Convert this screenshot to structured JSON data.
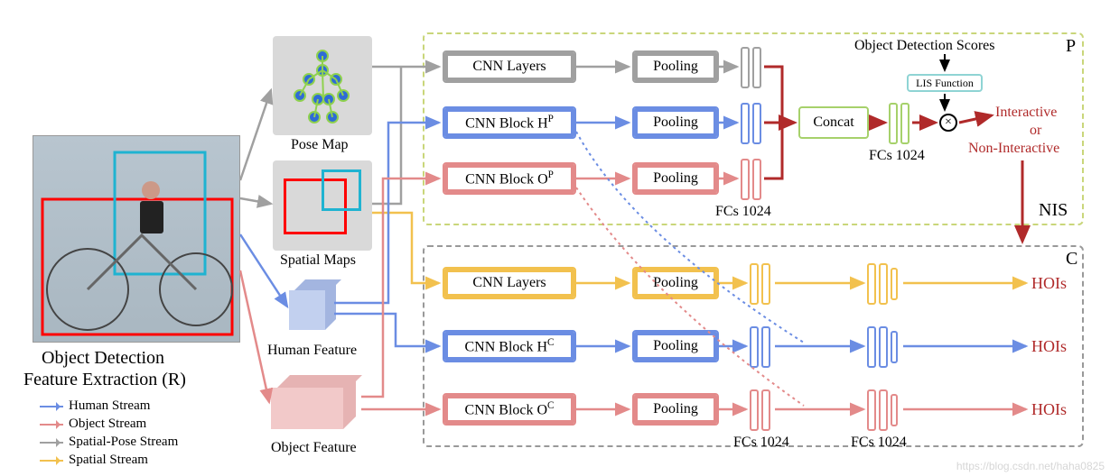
{
  "colors": {
    "blue": "#6b8de3",
    "red": "#e38a8a",
    "pink": "#f2a5a5",
    "grey": "#a0a0a0",
    "yellow": "#f2c14e",
    "green": "#a6d16b",
    "darkred": "#b02a2a",
    "darkgreen": "#8aab75",
    "teal": "#8fd4d4",
    "dashborder_p": "#c9d67a",
    "dashborder_c": "#999999",
    "greybg": "#d9d9d9",
    "lightblue_cube": "#c2d0ef",
    "lightpink_cube": "#f2c9c9",
    "darkblue_cube": "#a3b5e0",
    "darkpink_cube": "#e6b3b3"
  },
  "left": {
    "title1": "Object Detection",
    "title2": "Feature Extraction (R)",
    "legend": [
      {
        "label": "Human Stream",
        "color": "#6b8de3"
      },
      {
        "label": "Object   Stream",
        "color": "#e38a8a"
      },
      {
        "label": "Spatial-Pose Stream",
        "color": "#a0a0a0"
      },
      {
        "label": "Spatial Stream",
        "color": "#f2c14e"
      }
    ]
  },
  "mid": {
    "posemap": "Pose Map",
    "spatialmaps": "Spatial Maps",
    "humanfeat": "Human Feature",
    "objfeat": "Object Feature"
  },
  "blocks": {
    "p1": {
      "cnn": "CNN Layers",
      "pool": "Pooling",
      "color": "#a0a0a0"
    },
    "p2": {
      "cnn": "CNN Block Hᴾ",
      "pool": "Pooling",
      "color": "#6b8de3"
    },
    "p3": {
      "cnn": "CNN Block Oᴾ",
      "pool": "Pooling",
      "color": "#e38a8a"
    },
    "c1": {
      "cnn": "CNN Layers",
      "pool": "Pooling",
      "color": "#f2c14e"
    },
    "c2": {
      "cnn": "CNN Block Hᶜ",
      "pool": "Pooling",
      "color": "#6b8de3"
    },
    "c3": {
      "cnn": "CNN Block Oᶜ",
      "pool": "Pooling",
      "color": "#e38a8a"
    }
  },
  "concat": "Concat",
  "fcs": "FCs 1024",
  "ods": "Object Detection Scores",
  "lis": "LIS Function",
  "inter": "Interactive",
  "or": "or",
  "noninter": "Non-Interactive",
  "nis": "NIS",
  "p_label": "P",
  "c_label": "C",
  "hois": "HOIs",
  "watermark": "https://blog.csdn.net/haha0825"
}
